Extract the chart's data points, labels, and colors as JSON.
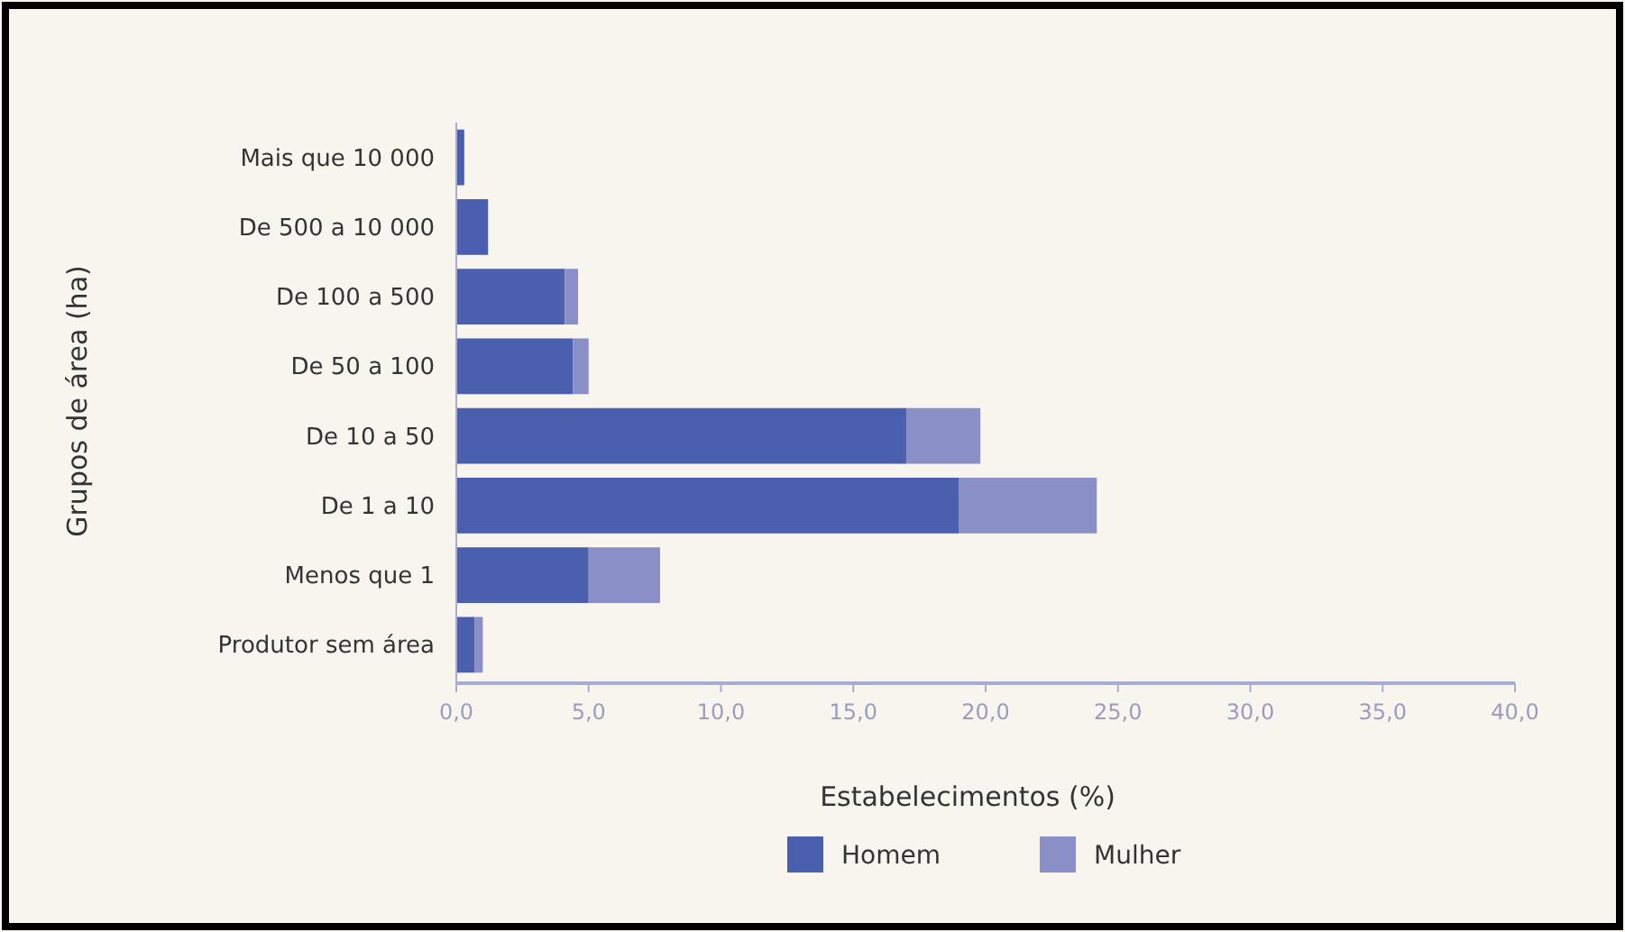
{
  "chart_data": {
    "type": "bar",
    "orientation": "horizontal",
    "stacked": true,
    "xlabel": "Estabelecimentos (%)",
    "ylabel": "Grupos de área (ha)",
    "categories": [
      "Mais que 10 000",
      "De 500 a 10 000",
      "De 100 a 500",
      "De 50 a 100",
      "De 10 a 50",
      "De 1 a 10",
      "Menos que 1",
      "Produtor sem área"
    ],
    "series": [
      {
        "name": "Homem",
        "color": "#4a5fad",
        "values": [
          0.3,
          1.2,
          4.1,
          4.4,
          17.0,
          19.0,
          5.0,
          0.7
        ]
      },
      {
        "name": "Mulher",
        "color": "#8b8fc8",
        "values": [
          0,
          0,
          0.5,
          0.6,
          2.8,
          5.2,
          2.7,
          0.3
        ]
      }
    ],
    "xlim": [
      0,
      40
    ],
    "xticks": [
      {
        "value": 0,
        "label": "0,0"
      },
      {
        "value": 5,
        "label": "5,0"
      },
      {
        "value": 10,
        "label": "10,0"
      },
      {
        "value": 15,
        "label": "15,0"
      },
      {
        "value": 20,
        "label": "20,0"
      },
      {
        "value": 25,
        "label": "25,0"
      },
      {
        "value": 30,
        "label": "30,0"
      },
      {
        "value": 35,
        "label": "35,0"
      },
      {
        "value": 40,
        "label": "40,0"
      }
    ],
    "grid": false,
    "legend": "bottom"
  }
}
